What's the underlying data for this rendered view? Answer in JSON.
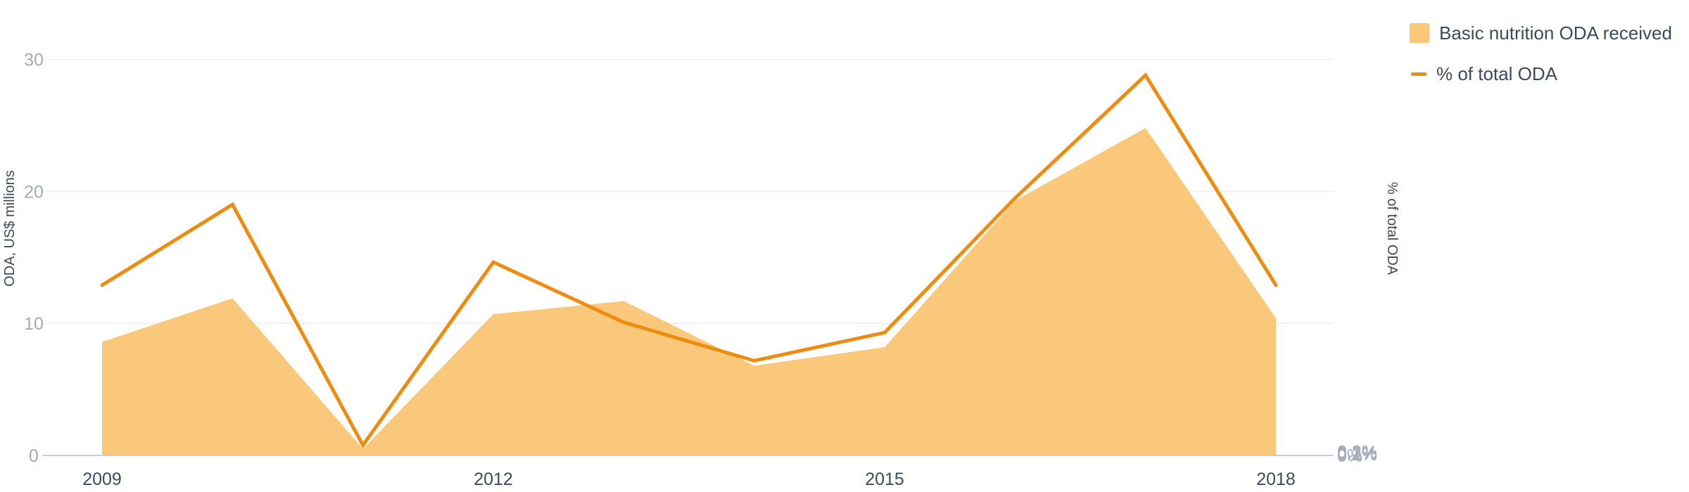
{
  "chart_data": {
    "type": "area",
    "title": "",
    "x": [
      "2009",
      "2010",
      "2011",
      "2012",
      "2013",
      "2014",
      "2015",
      "2016",
      "2017",
      "2018"
    ],
    "x_tick_labels": [
      "2009",
      "2012",
      "2015",
      "2018"
    ],
    "y_left": {
      "label": "ODA, US$ millions",
      "ticks": [
        "0",
        "10",
        "20",
        "30"
      ],
      "lim": [
        0,
        32
      ]
    },
    "y_right": {
      "label": "% of total ODA",
      "ticks": [
        "0%",
        "0.1%",
        "0.2%",
        "0.3%"
      ],
      "lim": [
        0,
        0.33
      ]
    },
    "series": [
      {
        "name": "Basic nutrition ODA received",
        "type": "area",
        "axis": "left",
        "color": "#fac87a",
        "values": [
          8.6,
          11.9,
          0.5,
          10.7,
          11.7,
          6.8,
          8.2,
          19.3,
          24.8,
          10.4
        ]
      },
      {
        "name": "% of total ODA",
        "type": "line",
        "axis": "right",
        "color": "#ef8c0f",
        "values": [
          0.133,
          0.196,
          0.008,
          0.151,
          0.104,
          0.074,
          0.096,
          0.201,
          0.297,
          0.133
        ]
      }
    ],
    "grid": true,
    "legend": "top-right"
  },
  "legend": {
    "area_label": "Basic nutrition ODA received",
    "line_label": "% of total ODA"
  }
}
